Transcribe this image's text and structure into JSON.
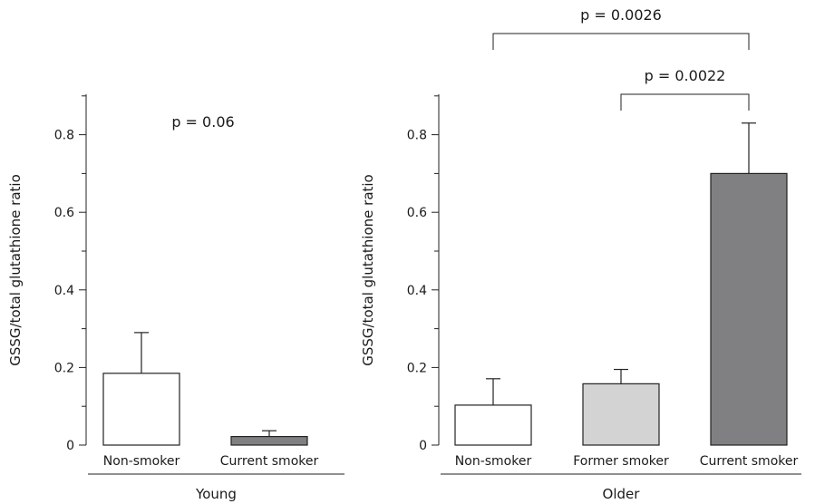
{
  "chart_data": [
    {
      "type": "bar",
      "group_label": "Young",
      "ylabel": "GSSG/total glutathione ratio",
      "ylim": [
        0,
        0.9
      ],
      "yticks": [
        0,
        0.2,
        0.4,
        0.6,
        0.8
      ],
      "ytick_labels": [
        "0",
        "0.2",
        "0.4",
        "0.6",
        "0.8"
      ],
      "categories": [
        "Non-smoker",
        "Current smoker"
      ],
      "values": [
        0.185,
        0.022
      ],
      "errors": [
        0.105,
        0.015
      ],
      "colors": [
        "#ffffff",
        "#808083"
      ],
      "annotations": [
        {
          "text": "p = 0.06"
        }
      ],
      "grid": false
    },
    {
      "type": "bar",
      "group_label": "Older",
      "ylabel": "GSSG/total glutathione ratio",
      "ylim": [
        0,
        0.9
      ],
      "yticks": [
        0,
        0.2,
        0.4,
        0.6,
        0.8
      ],
      "ytick_labels": [
        "0",
        "0.2",
        "0.4",
        "0.6",
        "0.8"
      ],
      "categories": [
        "Non-smoker",
        "Former smoker",
        "Current smoker"
      ],
      "values": [
        0.103,
        0.158,
        0.7
      ],
      "errors": [
        0.068,
        0.037,
        0.13
      ],
      "colors": [
        "#ffffff",
        "#d3d3d3",
        "#808083"
      ],
      "annotations": [
        {
          "text": "p = 0.0026",
          "from": 0,
          "to": 2
        },
        {
          "text": "p = 0.0022",
          "from": 1,
          "to": 2
        }
      ],
      "grid": false
    }
  ]
}
